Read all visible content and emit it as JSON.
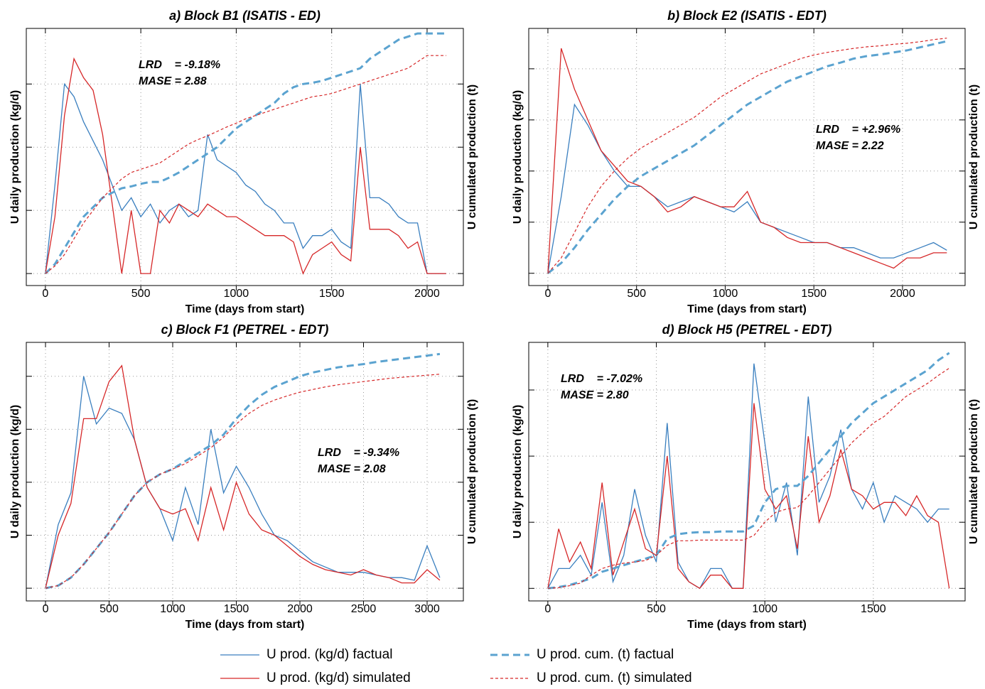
{
  "chart_data": [
    {
      "type": "line",
      "title": "a) Block B1 (ISATIS - ED)",
      "xlabel": "Time (days from start)",
      "ylabel": "U daily production (kg/d)",
      "y2label": "U cumulated production (t)",
      "annotations": [
        "LRD    = -9.18%",
        "MASE = 2.88"
      ],
      "xlim": [
        -100,
        2190
      ],
      "xticks": [
        0,
        500,
        1000,
        1500,
        2000
      ],
      "ylim": [
        -0.19,
        3.88
      ],
      "yticks": [
        0,
        1,
        2,
        3
      ],
      "y2lim": [
        -0.19,
        3.88
      ],
      "y2ticks": [
        0,
        1,
        2,
        3
      ],
      "grid": true,
      "x": [
        0,
        50,
        100,
        150,
        200,
        250,
        300,
        350,
        400,
        450,
        500,
        550,
        600,
        650,
        700,
        750,
        800,
        850,
        900,
        950,
        1000,
        1050,
        1100,
        1150,
        1200,
        1250,
        1300,
        1350,
        1400,
        1450,
        1500,
        1550,
        1600,
        1650,
        1700,
        1750,
        1800,
        1850,
        1900,
        1950,
        2000,
        2050,
        2100
      ],
      "series": [
        {
          "name": "U prod. (kg/d) factual",
          "color": "#3a7fbf",
          "style": "solid",
          "linewidth": 1.3,
          "values": [
            0,
            1.4,
            3.0,
            2.8,
            2.4,
            2.1,
            1.8,
            1.4,
            1.0,
            1.2,
            0.9,
            1.1,
            0.8,
            1.0,
            1.1,
            0.9,
            1.0,
            2.2,
            1.8,
            1.7,
            1.6,
            1.4,
            1.3,
            1.1,
            1.0,
            0.8,
            0.8,
            0.4,
            0.6,
            0.6,
            0.7,
            0.5,
            0.4,
            3.0,
            1.2,
            1.2,
            1.1,
            0.9,
            0.8,
            0.8,
            0,
            0,
            0
          ]
        },
        {
          "name": "U prod. (kg/d) simulated",
          "color": "#d62728",
          "style": "solid",
          "linewidth": 1.3,
          "values": [
            0,
            0.9,
            2.5,
            3.4,
            3.1,
            2.9,
            2.2,
            1.1,
            0,
            1.0,
            0,
            0,
            1.0,
            0.8,
            1.1,
            1.0,
            0.9,
            1.1,
            1.0,
            0.9,
            0.9,
            0.8,
            0.7,
            0.6,
            0.6,
            0.6,
            0.5,
            0,
            0.3,
            0.4,
            0.5,
            0.3,
            0.2,
            2.0,
            0.7,
            0.7,
            0.7,
            0.6,
            0.4,
            0.5,
            0,
            0,
            0
          ]
        },
        {
          "name": "U prod. cum. (t) factual",
          "color": "#5ba3d0",
          "style": "dashed",
          "linewidth": 3,
          "axis": "y2",
          "values": [
            0,
            0.15,
            0.4,
            0.65,
            0.9,
            1.05,
            1.2,
            1.28,
            1.35,
            1.38,
            1.42,
            1.45,
            1.45,
            1.52,
            1.6,
            1.7,
            1.8,
            1.9,
            2.0,
            2.15,
            2.3,
            2.4,
            2.5,
            2.6,
            2.7,
            2.85,
            2.95,
            3.0,
            3.02,
            3.05,
            3.1,
            3.15,
            3.2,
            3.25,
            3.4,
            3.5,
            3.6,
            3.7,
            3.75,
            3.8,
            3.8,
            3.8,
            3.8
          ]
        },
        {
          "name": "U prod. cum. (t) simulated",
          "color": "#d62728",
          "style": "dotted",
          "linewidth": 1.2,
          "axis": "y2",
          "values": [
            0,
            0.12,
            0.3,
            0.55,
            0.8,
            1.0,
            1.2,
            1.35,
            1.5,
            1.6,
            1.65,
            1.7,
            1.75,
            1.85,
            1.95,
            2.05,
            2.12,
            2.18,
            2.25,
            2.32,
            2.38,
            2.45,
            2.5,
            2.55,
            2.6,
            2.65,
            2.7,
            2.75,
            2.8,
            2.82,
            2.85,
            2.9,
            2.95,
            3.0,
            3.05,
            3.1,
            3.15,
            3.2,
            3.25,
            3.35,
            3.45,
            3.45,
            3.45
          ]
        }
      ]
    },
    {
      "type": "line",
      "title": "b) Block E2 (ISATIS - EDT)",
      "xlabel": "Time (days from start)",
      "ylabel": "U daily production (kg/d)",
      "y2label": "U cumulated production (t)",
      "annotations": [
        "LRD    = +2.96%",
        "MASE = 2.22"
      ],
      "xlim": [
        -108,
        2353
      ],
      "xticks": [
        0,
        500,
        1000,
        1500,
        2000
      ],
      "ylim": [
        -0.24,
        4.79
      ],
      "yticks": [
        0,
        1,
        2,
        3,
        4
      ],
      "y2lim": [
        -0.24,
        4.79
      ],
      "y2ticks": [
        0,
        1,
        2,
        3,
        4
      ],
      "grid": true,
      "x": [
        0,
        75,
        150,
        225,
        300,
        375,
        450,
        525,
        600,
        675,
        750,
        825,
        900,
        975,
        1050,
        1125,
        1200,
        1275,
        1350,
        1425,
        1500,
        1575,
        1650,
        1725,
        1800,
        1875,
        1950,
        2025,
        2100,
        2175,
        2250
      ],
      "series": [
        {
          "color": "#3a7fbf",
          "style": "solid",
          "linewidth": 1.3,
          "values": [
            0,
            1.5,
            3.3,
            2.9,
            2.4,
            2.0,
            1.7,
            1.7,
            1.5,
            1.3,
            1.4,
            1.5,
            1.4,
            1.3,
            1.2,
            1.4,
            1.0,
            0.9,
            0.8,
            0.7,
            0.6,
            0.6,
            0.5,
            0.5,
            0.4,
            0.3,
            0.3,
            0.4,
            0.5,
            0.6,
            0.45
          ]
        },
        {
          "color": "#d62728",
          "style": "solid",
          "linewidth": 1.3,
          "values": [
            0,
            4.4,
            3.6,
            3.0,
            2.4,
            2.1,
            1.8,
            1.7,
            1.5,
            1.2,
            1.3,
            1.5,
            1.4,
            1.3,
            1.3,
            1.6,
            1.0,
            0.9,
            0.7,
            0.6,
            0.6,
            0.6,
            0.5,
            0.4,
            0.3,
            0.2,
            0.1,
            0.3,
            0.3,
            0.4,
            0.4
          ]
        },
        {
          "color": "#5ba3d0",
          "style": "dashed",
          "linewidth": 3,
          "axis": "y2",
          "values": [
            0,
            0.2,
            0.5,
            0.85,
            1.15,
            1.45,
            1.7,
            1.9,
            2.05,
            2.2,
            2.35,
            2.5,
            2.7,
            2.9,
            3.1,
            3.3,
            3.45,
            3.6,
            3.75,
            3.85,
            3.95,
            4.05,
            4.12,
            4.2,
            4.25,
            4.28,
            4.32,
            4.36,
            4.42,
            4.48,
            4.54
          ]
        },
        {
          "color": "#d62728",
          "style": "dotted",
          "linewidth": 1.2,
          "axis": "y2",
          "values": [
            0,
            0.3,
            0.8,
            1.3,
            1.7,
            2.0,
            2.25,
            2.45,
            2.6,
            2.75,
            2.9,
            3.05,
            3.25,
            3.45,
            3.6,
            3.75,
            3.9,
            4.0,
            4.1,
            4.2,
            4.27,
            4.32,
            4.36,
            4.4,
            4.43,
            4.45,
            4.48,
            4.5,
            4.53,
            4.57,
            4.6
          ]
        }
      ]
    },
    {
      "type": "line",
      "title": "c) Block F1 (PETREL - EDT)",
      "xlabel": "Time (days from start)",
      "ylabel": "U daily production (kg/d)",
      "y2label": "U cumulated production (t)",
      "annotations": [
        "LRD    = -9.34%",
        "MASE = 2.08"
      ],
      "xlim": [
        -151,
        3285
      ],
      "xticks": [
        0,
        500,
        1000,
        1500,
        2000,
        2500,
        3000
      ],
      "ylim": [
        -0.24,
        4.64
      ],
      "yticks": [
        0,
        1,
        2,
        3,
        4
      ],
      "y2lim": [
        -0.24,
        4.64
      ],
      "y2ticks": [
        0,
        1,
        2,
        3,
        4
      ],
      "grid": true,
      "x": [
        0,
        100,
        200,
        300,
        400,
        500,
        600,
        700,
        800,
        900,
        1000,
        1100,
        1200,
        1300,
        1400,
        1500,
        1600,
        1700,
        1800,
        1900,
        2000,
        2100,
        2200,
        2300,
        2400,
        2500,
        2600,
        2700,
        2800,
        2900,
        3000,
        3100
      ],
      "series": [
        {
          "color": "#3a7fbf",
          "style": "solid",
          "linewidth": 1.3,
          "values": [
            0,
            1.2,
            1.8,
            4.0,
            3.1,
            3.4,
            3.3,
            2.8,
            1.9,
            1.5,
            0.9,
            1.9,
            1.2,
            3.0,
            1.8,
            2.3,
            1.9,
            1.4,
            1.0,
            0.9,
            0.7,
            0.5,
            0.4,
            0.3,
            0.3,
            0.3,
            0.25,
            0.2,
            0.2,
            0.15,
            0.8,
            0.2
          ]
        },
        {
          "color": "#d62728",
          "style": "solid",
          "linewidth": 1.3,
          "values": [
            0,
            1.0,
            1.6,
            3.2,
            3.2,
            3.9,
            4.2,
            2.8,
            1.9,
            1.5,
            1.4,
            1.5,
            0.9,
            1.9,
            1.1,
            2.0,
            1.4,
            1.1,
            1.0,
            0.8,
            0.6,
            0.45,
            0.35,
            0.3,
            0.25,
            0.35,
            0.25,
            0.2,
            0.1,
            0.1,
            0.35,
            0.15
          ]
        },
        {
          "color": "#5ba3d0",
          "style": "dashed",
          "linewidth": 3,
          "axis": "y2",
          "values": [
            0,
            0.05,
            0.2,
            0.45,
            0.75,
            1.05,
            1.4,
            1.75,
            2.0,
            2.15,
            2.25,
            2.4,
            2.55,
            2.7,
            2.9,
            3.2,
            3.45,
            3.65,
            3.8,
            3.9,
            4.0,
            4.07,
            4.12,
            4.17,
            4.2,
            4.23,
            4.27,
            4.3,
            4.33,
            4.36,
            4.39,
            4.42
          ]
        },
        {
          "color": "#d62728",
          "style": "dotted",
          "linewidth": 1.2,
          "axis": "y2",
          "values": [
            0,
            0.05,
            0.2,
            0.45,
            0.75,
            1.05,
            1.4,
            1.75,
            2.0,
            2.15,
            2.25,
            2.35,
            2.5,
            2.65,
            2.85,
            3.1,
            3.3,
            3.45,
            3.55,
            3.63,
            3.7,
            3.75,
            3.8,
            3.84,
            3.87,
            3.9,
            3.93,
            3.96,
            3.98,
            4.0,
            4.02,
            4.04
          ]
        }
      ]
    },
    {
      "type": "line",
      "title": "d) Block H5 (PETREL - EDT)",
      "xlabel": "Time (days from start)",
      "ylabel": "U daily production (kg/d)",
      "y2label": "U cumulated production (t)",
      "annotations": [
        "LRD    = -7.02%",
        "MASE = 2.80"
      ],
      "xlim": [
        -88,
        1923
      ],
      "xticks": [
        0,
        500,
        1000,
        1500
      ],
      "ylim": [
        -0.19,
        3.72
      ],
      "yticks": [
        0,
        1,
        2,
        3
      ],
      "y2lim": [
        -0.19,
        3.72
      ],
      "y2ticks": [
        0,
        1,
        2,
        3
      ],
      "grid": true,
      "x": [
        0,
        50,
        100,
        150,
        200,
        250,
        300,
        350,
        400,
        450,
        500,
        550,
        600,
        650,
        700,
        750,
        800,
        850,
        900,
        950,
        1000,
        1050,
        1100,
        1150,
        1200,
        1250,
        1300,
        1350,
        1400,
        1450,
        1500,
        1550,
        1600,
        1650,
        1700,
        1750,
        1800,
        1850
      ],
      "series": [
        {
          "color": "#3a7fbf",
          "style": "solid",
          "linewidth": 1.3,
          "values": [
            0,
            0.3,
            0.3,
            0.5,
            0.2,
            1.3,
            0.1,
            0.5,
            1.5,
            0.8,
            0.4,
            2.5,
            0.4,
            0.1,
            0,
            0.3,
            0.3,
            0,
            0,
            3.4,
            2.2,
            1.0,
            1.6,
            0.5,
            2.9,
            1.3,
            1.7,
            2.4,
            1.5,
            1.2,
            1.6,
            1.0,
            1.4,
            1.3,
            1.2,
            1.0,
            1.2,
            1.2
          ]
        },
        {
          "color": "#d62728",
          "style": "solid",
          "linewidth": 1.3,
          "values": [
            0,
            0.9,
            0.4,
            0.7,
            0.3,
            1.6,
            0.2,
            0.7,
            1.2,
            0.6,
            0.5,
            2.0,
            0.3,
            0.1,
            0,
            0.2,
            0.2,
            0,
            0,
            2.8,
            1.5,
            1.2,
            1.4,
            0.6,
            2.3,
            1.0,
            1.4,
            2.1,
            1.5,
            1.4,
            1.2,
            1.3,
            1.3,
            1.1,
            1.4,
            1.1,
            1.0,
            0
          ]
        },
        {
          "color": "#5ba3d0",
          "style": "dashed",
          "linewidth": 3,
          "axis": "y2",
          "values": [
            0,
            0.02,
            0.05,
            0.1,
            0.15,
            0.25,
            0.3,
            0.35,
            0.4,
            0.45,
            0.5,
            0.75,
            0.82,
            0.84,
            0.85,
            0.85,
            0.86,
            0.86,
            0.86,
            0.95,
            1.3,
            1.5,
            1.55,
            1.55,
            1.7,
            1.9,
            2.1,
            2.3,
            2.5,
            2.65,
            2.8,
            2.9,
            3.0,
            3.1,
            3.2,
            3.3,
            3.45,
            3.56
          ]
        },
        {
          "color": "#d62728",
          "style": "dotted",
          "linewidth": 1.2,
          "axis": "y2",
          "values": [
            0,
            0.01,
            0.04,
            0.08,
            0.2,
            0.3,
            0.35,
            0.38,
            0.4,
            0.42,
            0.5,
            0.65,
            0.72,
            0.72,
            0.73,
            0.73,
            0.73,
            0.73,
            0.73,
            0.8,
            1.0,
            1.15,
            1.2,
            1.22,
            1.4,
            1.6,
            1.8,
            2.0,
            2.2,
            2.35,
            2.5,
            2.6,
            2.75,
            2.9,
            3.0,
            3.1,
            3.22,
            3.33
          ]
        }
      ]
    }
  ]
}
